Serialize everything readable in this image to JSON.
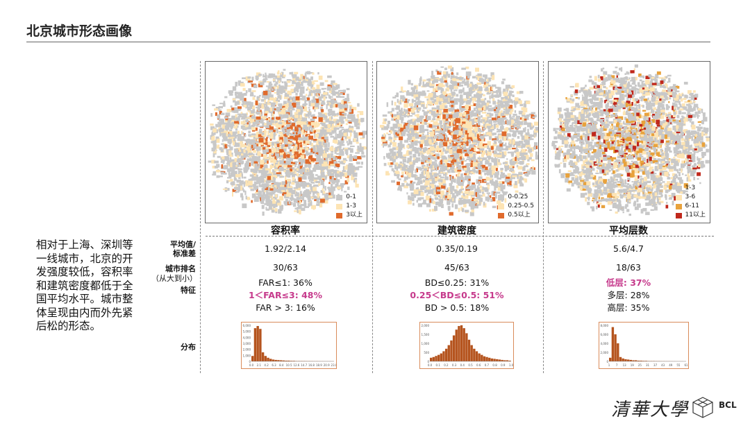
{
  "page": {
    "title": "北京城市形态画像"
  },
  "columns": [
    {
      "heading": "容积率",
      "legend": [
        "0-1",
        "1-3",
        "3以上"
      ],
      "legend_colors": [
        "#c8c8c8",
        "#fde4b4",
        "#e06a2c"
      ],
      "mean_std": "1.92/2.14",
      "rank": "30/63",
      "features": [
        {
          "text": "FAR≤1: 36%",
          "highlight": false
        },
        {
          "text": "1＜FAR≤3: 48%",
          "highlight": true
        },
        {
          "text": "FAR > 3: 16%",
          "highlight": false
        }
      ],
      "hist": {
        "bars": [
          0.15,
          0.92,
          0.98,
          0.9,
          0.25,
          0.15,
          0.1,
          0.07,
          0.05,
          0.04,
          0.035,
          0.03,
          0.025,
          0.02,
          0.02,
          0.015,
          0.015,
          0.01,
          0.01,
          0.01,
          0.01,
          0.008,
          0.008,
          0.007,
          0.006,
          0.006,
          0.005,
          0.005,
          0.004,
          0.004,
          0.004,
          0.003
        ],
        "yticks": [
          "6,000",
          "5,000",
          "4,000",
          "3,000",
          "2,000",
          "1,000",
          "0"
        ],
        "xticks": [
          "0.0",
          "2.1",
          "4.2",
          "6.3",
          "8.4",
          "10.5",
          "12.6",
          "14.7",
          "16.8",
          "18.9",
          "20.9",
          "23.0"
        ]
      }
    },
    {
      "heading": "建筑密度",
      "legend": [
        "0-0.25",
        "0.25-0.5",
        "0.5以上"
      ],
      "legend_colors": [
        "#c8c8c8",
        "#fde4b4",
        "#e06a2c"
      ],
      "mean_std": "0.35/0.19",
      "rank": "45/63",
      "features": [
        {
          "text": "BD≤0.25: 31%",
          "highlight": false
        },
        {
          "text": "0.25＜BD≤0.5: 51%",
          "highlight": true
        },
        {
          "text": "BD > 0.5: 18%",
          "highlight": false
        }
      ],
      "hist": {
        "bars": [
          0.1,
          0.12,
          0.15,
          0.18,
          0.22,
          0.28,
          0.35,
          0.45,
          0.58,
          0.72,
          0.88,
          0.98,
          1.0,
          0.92,
          0.78,
          0.6,
          0.45,
          0.35,
          0.28,
          0.22,
          0.18,
          0.14,
          0.12,
          0.1,
          0.08,
          0.07,
          0.06,
          0.05,
          0.04,
          0.03,
          0.03,
          0.02
        ],
        "yticks": [
          "2,000",
          "1,500",
          "1,000",
          "500",
          "0"
        ],
        "xticks": [
          "0.0",
          "0.1",
          "0.2",
          "0.3",
          "0.4",
          "0.5",
          "0.6",
          "0.7",
          "0.8",
          "0.9",
          "1.0"
        ]
      }
    },
    {
      "heading": "平均层数",
      "legend": [
        "1-3",
        "3-6",
        "6-11",
        "11以上"
      ],
      "legend_colors": [
        "#c8c8c8",
        "#fde4b4",
        "#e8a23c",
        "#c0281c"
      ],
      "mean_std": "5.6/4.7",
      "rank": "18/63",
      "features": [
        {
          "text": "低层: 37%",
          "highlight": true
        },
        {
          "text": "多层: 28%",
          "highlight": false
        },
        {
          "text": "高层: 35%",
          "highlight": false
        }
      ],
      "hist": {
        "bars": [
          0.1,
          0.95,
          0.75,
          0.5,
          0.12,
          0.08,
          0.06,
          0.05,
          0.04,
          0.03,
          0.03,
          0.02,
          0.02,
          0.015,
          0.015,
          0.01,
          0.01,
          0.01,
          0.008,
          0.008,
          0.006,
          0.006,
          0.005,
          0.005,
          0.004,
          0.004,
          0.003,
          0.003,
          0.003,
          0.002
        ],
        "yticks": [
          "8,000",
          "6,000",
          "4,000",
          "2,000",
          "0"
        ],
        "xticks": [
          "1",
          "7",
          "13",
          "19",
          "25",
          "31",
          "37",
          "43",
          "49",
          "55",
          "61"
        ]
      }
    }
  ],
  "row_labels": {
    "mean_std": [
      "平均值/",
      "标准差"
    ],
    "rank": "城市排名",
    "rank_note": "（从大到小）",
    "features": "特征",
    "distribution": "分布"
  },
  "summary": "相对于上海、深圳等一线城市，北京的开发强度较低，容积率和建筑密度都低于全国平均水平。城市整体呈现由内而外先紧后松的形态。",
  "logo": {
    "university": "清華大學",
    "lab": "BCL"
  }
}
